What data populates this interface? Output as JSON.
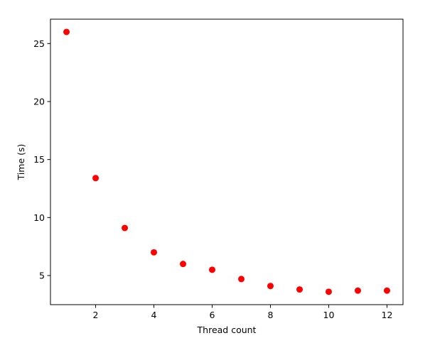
{
  "chart_data": {
    "type": "scatter",
    "title": "",
    "xlabel": "Thread count",
    "ylabel": "Time (s)",
    "x": [
      1,
      2,
      3,
      4,
      5,
      6,
      7,
      8,
      9,
      10,
      11,
      12
    ],
    "series": [
      {
        "values": [
          26.0,
          13.4,
          9.1,
          7.0,
          6.0,
          5.5,
          4.7,
          4.1,
          3.8,
          3.6,
          3.7,
          3.7
        ],
        "color": "#ff0000"
      }
    ],
    "xlim": [
      0.45,
      12.55
    ],
    "ylim": [
      2.49,
      27.1
    ],
    "xticks": [
      2,
      4,
      6,
      8,
      10,
      12
    ],
    "yticks": [
      5,
      10,
      15,
      20,
      25
    ],
    "grid": false,
    "legend": "none"
  }
}
